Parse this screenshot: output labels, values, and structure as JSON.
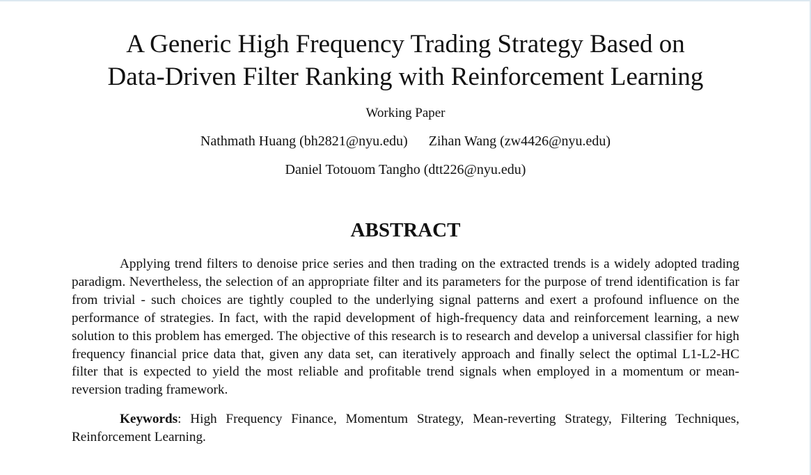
{
  "paper": {
    "title_line1": "A Generic High Frequency Trading Strategy Based on",
    "title_line2": "Data-Driven Filter Ranking with Reinforcement Learning",
    "subtitle": "Working Paper",
    "authors": [
      "Nathmath Huang (bh2821@nyu.edu)",
      "Zihan Wang (zw4426@nyu.edu)",
      "Daniel Totouom Tangho (dtt226@nyu.edu)"
    ],
    "abstract_heading": "ABSTRACT",
    "abstract_text": "Applying trend filters to denoise price series and then trading on the extracted trends is a widely adopted trading paradigm. Nevertheless, the selection of an appropriate filter and its parameters for the purpose of trend identification is far from trivial - such choices are tightly coupled to the underlying signal patterns and exert a profound influence on the performance of strategies. In fact, with the rapid development of high-frequency data and reinforcement learning, a new solution to this problem has emerged. The objective of this research is to research and develop a universal classifier for high frequency financial price data that, given any data set, can iteratively approach and finally select the optimal L1-L2-HC filter that is expected to yield the most reliable and profitable trend signals when employed in a momentum or mean-reversion trading framework.",
    "keywords_label": "Keywords",
    "keywords_text": ": High Frequency Finance, Momentum Strategy, Mean-reverting Strategy, Filtering Techniques, Reinforcement Learning."
  },
  "colors": {
    "text": "#111111",
    "background": "#ffffff",
    "frame": "#dce8f0"
  }
}
